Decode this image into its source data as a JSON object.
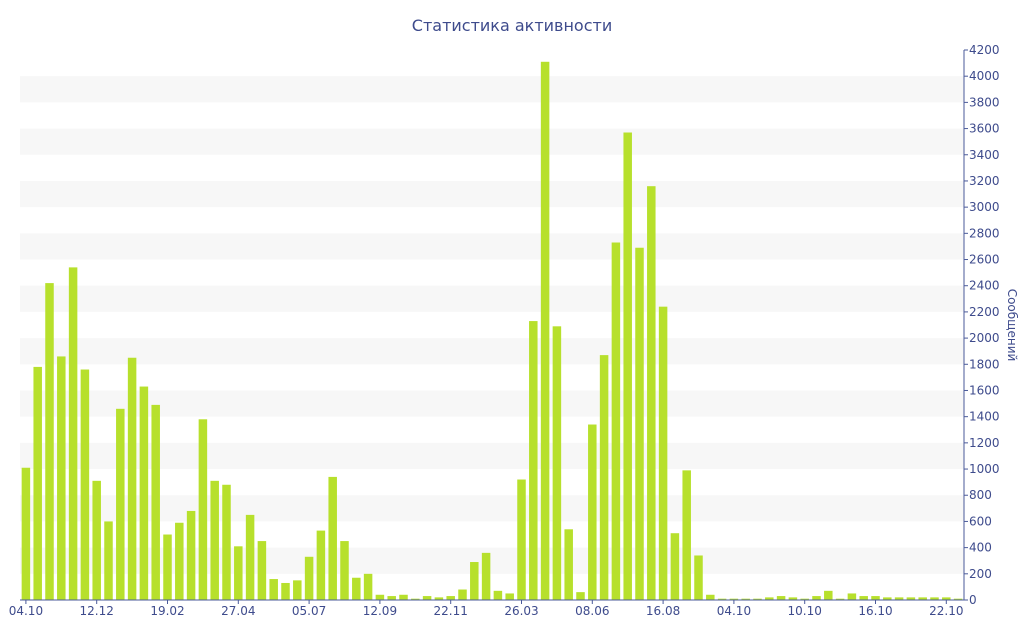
{
  "colors": {
    "bar": "#b7e02c",
    "band": "#f7f7f7",
    "text": "#3e4b8c",
    "axis": "#4a5a9a"
  },
  "chart_data": {
    "type": "bar",
    "title": "Статистика активности",
    "xlabel": "",
    "ylabel": "Сообщений",
    "y_axis_side": "right",
    "ylim": [
      0,
      4200
    ],
    "y_ticks": [
      0,
      200,
      400,
      600,
      800,
      1000,
      1200,
      1400,
      1600,
      1800,
      2000,
      2200,
      2400,
      2600,
      2800,
      3000,
      3200,
      3400,
      3600,
      3800,
      4000,
      4200
    ],
    "x_tick_labels": [
      {
        "index": 0,
        "label": "04.10"
      },
      {
        "index": 6,
        "label": "12.12"
      },
      {
        "index": 12,
        "label": "19.02"
      },
      {
        "index": 18,
        "label": "27.04"
      },
      {
        "index": 24,
        "label": "05.07"
      },
      {
        "index": 30,
        "label": "12.09"
      },
      {
        "index": 36,
        "label": "22.11"
      },
      {
        "index": 42,
        "label": "26.03"
      },
      {
        "index": 48,
        "label": "08.06"
      },
      {
        "index": 54,
        "label": "16.08"
      },
      {
        "index": 60,
        "label": "04.10"
      },
      {
        "index": 66,
        "label": "10.10"
      },
      {
        "index": 72,
        "label": "16.10"
      },
      {
        "index": 78,
        "label": "22.10"
      }
    ],
    "grid": "alternating horizontal bands",
    "legend": "none",
    "values": [
      1010,
      1780,
      2420,
      1860,
      2540,
      1760,
      910,
      600,
      1460,
      1850,
      1630,
      1490,
      500,
      590,
      680,
      1380,
      910,
      880,
      410,
      650,
      450,
      160,
      130,
      150,
      330,
      530,
      940,
      450,
      170,
      200,
      40,
      30,
      40,
      10,
      30,
      20,
      30,
      80,
      290,
      360,
      70,
      50,
      920,
      2130,
      4110,
      2090,
      540,
      60,
      1340,
      1870,
      2730,
      3570,
      2690,
      3160,
      2240,
      510,
      990,
      340,
      40,
      10,
      10,
      10,
      10,
      20,
      30,
      20,
      10,
      30,
      70,
      10,
      50,
      30,
      30,
      20,
      20,
      20,
      20,
      20,
      20,
      10
    ]
  }
}
